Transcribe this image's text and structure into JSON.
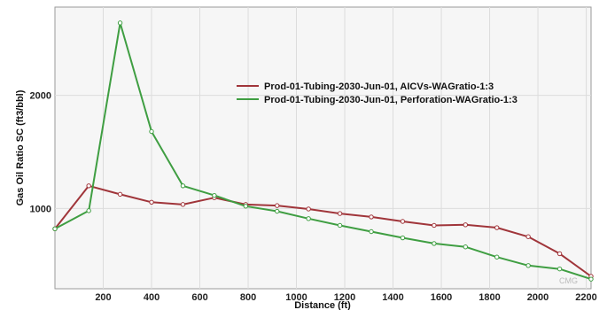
{
  "chart_data": {
    "type": "line",
    "xlabel": "Distance (ft)",
    "ylabel": "Gas Oil Ratio SC (ft3/bbl)",
    "xlim": [
      0,
      2220
    ],
    "ylim": [
      290,
      2780
    ],
    "x_ticks": [
      200,
      400,
      600,
      800,
      1000,
      1200,
      1400,
      1600,
      1800,
      2000,
      2200
    ],
    "y_ticks": [
      1000,
      2000
    ],
    "grid": true,
    "legend_position": "top-right",
    "series": [
      {
        "name": "Prod-01-Tubing-2030-Jun-01, AICVs-WAGratio-1:3",
        "color": "#a0353a",
        "x": [
          0,
          140,
          270,
          400,
          530,
          660,
          790,
          920,
          1050,
          1180,
          1310,
          1440,
          1570,
          1700,
          1830,
          1960,
          2090,
          2220
        ],
        "y": [
          820,
          1200,
          1125,
          1055,
          1035,
          1095,
          1035,
          1025,
          995,
          955,
          925,
          885,
          850,
          855,
          830,
          750,
          600,
          400
        ]
      },
      {
        "name": "Prod-01-Tubing-2030-Jun-01, Perforation-WAGratio-1:3",
        "color": "#3f9e42",
        "x": [
          0,
          140,
          270,
          400,
          530,
          660,
          790,
          920,
          1050,
          1180,
          1310,
          1440,
          1570,
          1700,
          1830,
          1960,
          2090,
          2220
        ],
        "y": [
          820,
          980,
          2640,
          1680,
          1200,
          1115,
          1020,
          975,
          910,
          850,
          795,
          740,
          690,
          660,
          570,
          495,
          465,
          375
        ]
      }
    ]
  },
  "watermark": "CMG"
}
